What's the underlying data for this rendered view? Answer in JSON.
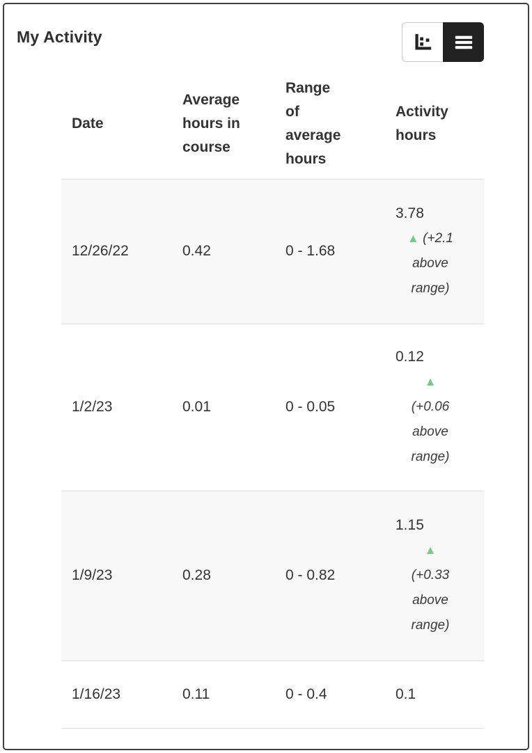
{
  "page": {
    "title": "My Activity"
  },
  "toolbar": {
    "chart_view_label": "Chart view",
    "table_view_label": "Table view"
  },
  "icons": {
    "up_triangle_glyph": "▲",
    "chart_view_icon": "scatter-chart-icon",
    "table_view_icon": "list-icon"
  },
  "colors": {
    "accent_green": "#77c98b",
    "selected_toggle_bg": "#212121",
    "alt_row_bg": "#f8f8f8",
    "border": "#dcdcdc",
    "text": "#333333"
  },
  "table": {
    "columns": [
      "Date",
      "Average hours in course",
      "Range of average hours",
      "Activity hours"
    ],
    "rows": [
      {
        "date": "12/26/22",
        "average_hours": "0.42",
        "range": "0 - 1.68",
        "activity_hours": "3.78",
        "above_range_note": "(+2.1 above range)"
      },
      {
        "date": "1/2/23",
        "average_hours": "0.01",
        "range": "0 - 0.05",
        "activity_hours": "0.12",
        "above_range_note": "(+0.06 above range)"
      },
      {
        "date": "1/9/23",
        "average_hours": "0.28",
        "range": "0 - 0.82",
        "activity_hours": "1.15",
        "above_range_note": "(+0.33 above range)"
      },
      {
        "date": "1/16/23",
        "average_hours": "0.11",
        "range": "0 - 0.4",
        "activity_hours": "0.1",
        "above_range_note": ""
      }
    ]
  }
}
